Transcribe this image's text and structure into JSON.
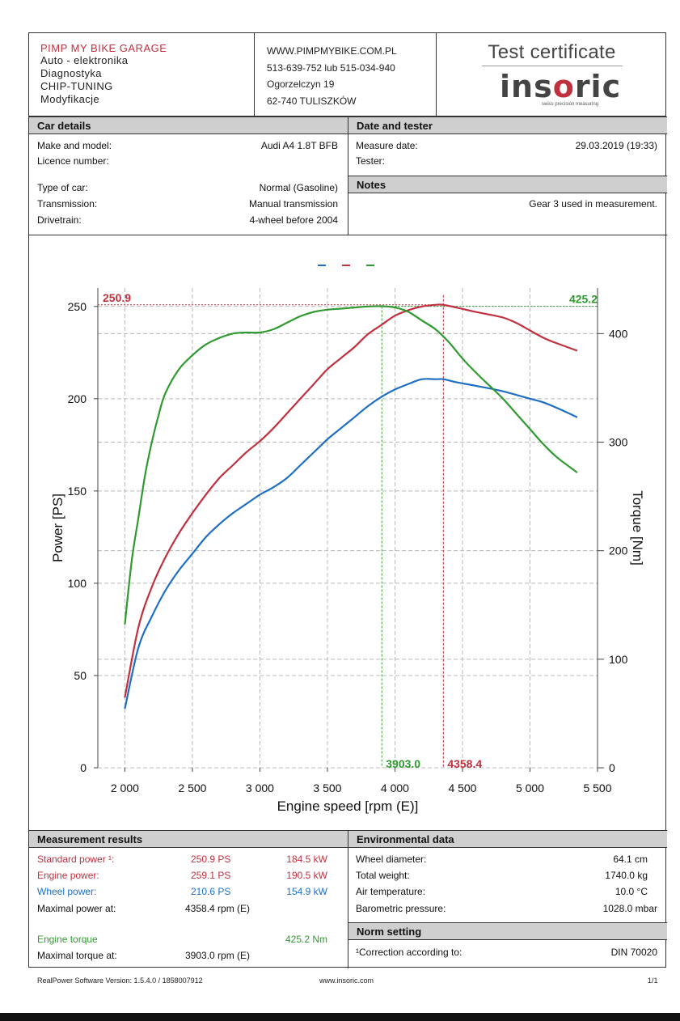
{
  "header": {
    "garage_name": "PIMP MY BIKE GARAGE",
    "garage_lines": [
      "Auto - elektronika",
      "Diagnostyka",
      "CHIP-TUNING",
      "Modyfikacje"
    ],
    "contact_lines": [
      "WWW.PIMPMYBIKE.COM.PL",
      "513-639-752 lub 515-034-940",
      "Ogorzelczyn 19",
      "62-740 TULISZKÓW"
    ],
    "certificate_title": "Test certificate",
    "logo_text_1": "ins",
    "logo_text_2": "o",
    "logo_text_3": "ric",
    "logo_tagline": "swiss precision measuring"
  },
  "car_details": {
    "title": "Car details",
    "rows": [
      {
        "label": "Make and model:",
        "value": "Audi A4 1.8T BFB"
      },
      {
        "label": "Licence number:",
        "value": ""
      },
      {
        "label": "Type of car:",
        "value": "Normal (Gasoline)"
      },
      {
        "label": "Transmission:",
        "value": "Manual transmission"
      },
      {
        "label": "Drivetrain:",
        "value": "4-wheel before 2004"
      }
    ]
  },
  "date_tester": {
    "title": "Date and tester",
    "rows": [
      {
        "label": "Measure date:",
        "value": "29.03.2019 (19:33)"
      },
      {
        "label": "Tester:",
        "value": ""
      }
    ]
  },
  "notes": {
    "title": "Notes",
    "text": "Gear 3 used in measurement."
  },
  "chart_data": {
    "type": "line",
    "xlabel": "Engine speed [rpm (E)]",
    "ylabel": "Power [PS]",
    "y2label": "Torque [Nm]",
    "xlim": [
      1800,
      5500
    ],
    "ylim": [
      0,
      260
    ],
    "y2lim": [
      0,
      442
    ],
    "x_ticks": [
      2000,
      2500,
      3000,
      3500,
      4000,
      4500,
      5000,
      5500
    ],
    "x_tick_labels": [
      "2 000",
      "2 500",
      "3 000",
      "3 500",
      "4 000",
      "4 500",
      "5 000",
      "5 500"
    ],
    "y_ticks": [
      0,
      50,
      100,
      150,
      200,
      250
    ],
    "y_tick_labels": [
      "0",
      "50",
      "100",
      "150",
      "200",
      "250"
    ],
    "y2_ticks": [
      0,
      100,
      200,
      300,
      400
    ],
    "y2_tick_labels": [
      "0",
      "100",
      "200",
      "300",
      "400"
    ],
    "grid": true,
    "legend": "top-center",
    "series": [
      {
        "axis": "left",
        "color": "#1e6fc4",
        "x": [
          2000,
          2100,
          2200,
          2300,
          2400,
          2500,
          2600,
          2700,
          2800,
          2900,
          3000,
          3100,
          3200,
          3300,
          3400,
          3500,
          3600,
          3700,
          3800,
          3900,
          4000,
          4100,
          4200,
          4300,
          4358,
          4450,
          4600,
          4800,
          5000,
          5100,
          5200,
          5350
        ],
        "y": [
          32,
          65,
          82,
          96,
          107,
          116,
          125,
          132,
          138,
          143,
          148,
          152,
          157,
          164,
          171,
          178,
          184,
          190,
          196,
          201,
          205,
          208,
          210.6,
          210.6,
          210.6,
          209,
          207,
          204,
          200,
          198,
          195,
          190
        ]
      },
      {
        "axis": "left",
        "color": "#c0303f",
        "x": [
          2000,
          2100,
          2200,
          2300,
          2400,
          2500,
          2600,
          2700,
          2800,
          2900,
          3000,
          3100,
          3200,
          3300,
          3400,
          3500,
          3600,
          3700,
          3800,
          3900,
          4000,
          4100,
          4200,
          4300,
          4358,
          4450,
          4600,
          4800,
          4900,
          5000,
          5100,
          5200,
          5350
        ],
        "y": [
          38,
          76,
          98,
          114,
          127,
          138,
          148,
          157,
          164,
          171,
          177,
          184,
          192,
          200,
          208,
          216,
          222,
          228,
          235,
          240,
          245,
          248,
          250,
          250.9,
          250.9,
          249.5,
          247,
          244,
          241,
          237,
          233,
          230,
          226
        ]
      },
      {
        "axis": "right",
        "color": "#2f9a2f",
        "x": [
          2000,
          2050,
          2100,
          2150,
          2200,
          2250,
          2300,
          2400,
          2500,
          2600,
          2700,
          2800,
          2900,
          3000,
          3100,
          3200,
          3300,
          3400,
          3500,
          3600,
          3700,
          3800,
          3903,
          4000,
          4100,
          4200,
          4300,
          4400,
          4500,
          4600,
          4700,
          4800,
          4900,
          5000,
          5100,
          5200,
          5350
        ],
        "y": [
          132,
          190,
          230,
          270,
          300,
          325,
          345,
          367,
          380,
          390,
          396,
          400,
          401,
          401,
          404,
          410,
          416,
          420,
          422,
          423,
          424,
          425,
          425.2,
          424,
          420,
          412,
          404,
          392,
          377,
          364,
          352,
          340,
          326,
          312,
          298,
          286,
          272
        ]
      }
    ],
    "markers": {
      "max_power_value": "250.9",
      "max_power_rpm": "4358.4",
      "max_torque_value": "425.2",
      "max_torque_rpm": "3903.0",
      "max_power_x": 4358.4,
      "max_power_y": 250.9,
      "max_torque_x": 3903.0,
      "max_torque_y": 425.2
    }
  },
  "measurement_results": {
    "title": "Measurement results",
    "standard_power": {
      "label": "Standard power ¹:",
      "ps": "250.9 PS",
      "kw": "184.5 kW"
    },
    "engine_power": {
      "label": "Engine power:",
      "ps": "259.1 PS",
      "kw": "190.5 kW"
    },
    "wheel_power": {
      "label": "Wheel power:",
      "ps": "210.6 PS",
      "kw": "154.9 kW"
    },
    "max_power_at": {
      "label": "Maximal power at:",
      "value": "4358.4 rpm (E)"
    },
    "engine_torque": {
      "label": "Engine torque",
      "value": "425.2 Nm"
    },
    "max_torque_at": {
      "label": "Maximal torque at:",
      "value": "3903.0 rpm (E)"
    }
  },
  "environmental": {
    "title": "Environmental data",
    "rows": [
      {
        "label": "Wheel diameter:",
        "value": "64.1 cm"
      },
      {
        "label": "Total weight:",
        "value": "1740.0 kg"
      },
      {
        "label": "Air temperature:",
        "value": "10.0 °C"
      },
      {
        "label": "Barometric pressure:",
        "value": "1028.0 mbar"
      }
    ]
  },
  "norm_setting": {
    "title": "Norm setting",
    "label": "¹Correction according to:",
    "value": "DIN 70020"
  },
  "footer": {
    "software": "RealPower Software Version: 1.5.4.0 / 1858007912",
    "website": "www.insoric.com",
    "page": "1/1"
  }
}
